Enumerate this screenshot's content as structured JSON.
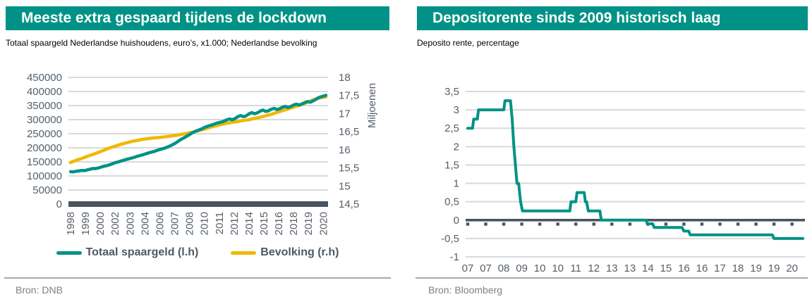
{
  "colors": {
    "accent_teal": "#009286",
    "accent_yellow": "#EFB800",
    "axis_bar": "#4a545e",
    "grid_line": "#d9d9d9",
    "tick_text": "#55606b",
    "legend_text": "#4d5a66",
    "title_text": "#ffffff",
    "source_text": "#808080"
  },
  "left_panel": {
    "title": "Meeste extra gespaard tijdens de lockdown",
    "subtitle": "Totaal spaargeld Nederlandse huishoudens, euro’s, x1.000; Nederlandse bevolking",
    "source": "Bron: DNB",
    "legend": [
      {
        "label": "Totaal spaargeld (l.h)",
        "color": "#009286"
      },
      {
        "label": "Bevolking (r.h)",
        "color": "#EFB800"
      }
    ]
  },
  "right_panel": {
    "title": "Depositorente sinds 2009 historisch laag",
    "subtitle": "Deposito rente, percentage",
    "source": "Bron: Bloomberg"
  },
  "chart_data": [
    {
      "type": "line",
      "title": "Meeste extra gespaard tijdens de lockdown",
      "subtitle": "Totaal spaargeld Nederlandse huishoudens, euro's, x1.000; Nederlandse bevolking",
      "source": "Bron: DNB",
      "grid": true,
      "legend_position": "bottom",
      "x_range": [
        1998,
        2020.9
      ],
      "left_axis": {
        "min": 0,
        "max": 450000,
        "step": 50000,
        "labels": [
          "450000",
          "400000",
          "350000",
          "300000",
          "250000",
          "200000",
          "150000",
          "100000",
          "50000",
          "0"
        ]
      },
      "right_axis": {
        "min": 14.5,
        "max": 18,
        "step": 0.5,
        "title": "Miljoenen",
        "labels": [
          "18",
          "17,5",
          "17",
          "16,5",
          "16",
          "15,5",
          "15",
          "14,5"
        ]
      },
      "x_ticks": {
        "labels": [
          "1998",
          "1999",
          "2000",
          "2002",
          "2003",
          "2004",
          "2006",
          "2007",
          "2008",
          "2010",
          "2011",
          "2012",
          "2014",
          "2015",
          "2016",
          "2018",
          "2019",
          "2020"
        ],
        "year_offsets": [
          0,
          1.333,
          2.667,
          4,
          5.333,
          6.667,
          8,
          9.333,
          10.667,
          12,
          13.333,
          14.667,
          16,
          17.333,
          18.667,
          20,
          21.333,
          22.667
        ]
      },
      "series": [
        {
          "name": "Bevolking (r.h)",
          "axis": "right",
          "color": "#EFB800",
          "points": [
            [
              1998.0,
              15.65
            ],
            [
              1998.5,
              15.71
            ],
            [
              1999.0,
              15.76
            ],
            [
              1999.5,
              15.82
            ],
            [
              2000.0,
              15.87
            ],
            [
              2000.5,
              15.93
            ],
            [
              2001.0,
              15.99
            ],
            [
              2001.5,
              16.05
            ],
            [
              2002.0,
              16.1
            ],
            [
              2002.5,
              16.15
            ],
            [
              2003.0,
              16.19
            ],
            [
              2003.5,
              16.23
            ],
            [
              2004.0,
              16.26
            ],
            [
              2004.5,
              16.29
            ],
            [
              2005.0,
              16.31
            ],
            [
              2005.5,
              16.33
            ],
            [
              2006.0,
              16.34
            ],
            [
              2006.5,
              16.36
            ],
            [
              2007.0,
              16.38
            ],
            [
              2007.5,
              16.4
            ],
            [
              2008.0,
              16.43
            ],
            [
              2008.5,
              16.46
            ],
            [
              2009.0,
              16.49
            ],
            [
              2009.5,
              16.53
            ],
            [
              2010.0,
              16.57
            ],
            [
              2010.5,
              16.62
            ],
            [
              2011.0,
              16.66
            ],
            [
              2011.5,
              16.7
            ],
            [
              2012.0,
              16.73
            ],
            [
              2012.5,
              16.76
            ],
            [
              2013.0,
              16.78
            ],
            [
              2013.5,
              16.81
            ],
            [
              2014.0,
              16.83
            ],
            [
              2014.5,
              16.87
            ],
            [
              2015.0,
              16.9
            ],
            [
              2015.5,
              16.94
            ],
            [
              2016.0,
              16.98
            ],
            [
              2016.5,
              17.03
            ],
            [
              2017.0,
              17.08
            ],
            [
              2017.5,
              17.13
            ],
            [
              2018.0,
              17.18
            ],
            [
              2018.5,
              17.23
            ],
            [
              2019.0,
              17.28
            ],
            [
              2019.5,
              17.35
            ],
            [
              2020.0,
              17.41
            ],
            [
              2020.5,
              17.44
            ],
            [
              2020.9,
              17.46
            ]
          ]
        },
        {
          "name": "Totaal spaargeld (l.h)",
          "axis": "left",
          "color": "#009286",
          "points": [
            [
              1998.0,
              115000
            ],
            [
              1998.25,
              114500
            ],
            [
              1998.5,
              116500
            ],
            [
              1998.75,
              118000
            ],
            [
              1999.0,
              119500
            ],
            [
              1999.25,
              119000
            ],
            [
              1999.5,
              121500
            ],
            [
              1999.75,
              124000
            ],
            [
              2000.0,
              126500
            ],
            [
              2000.25,
              126000
            ],
            [
              2000.5,
              128500
            ],
            [
              2000.75,
              131500
            ],
            [
              2001.0,
              134500
            ],
            [
              2001.25,
              136500
            ],
            [
              2001.5,
              139500
            ],
            [
              2001.75,
              143000
            ],
            [
              2002.0,
              147000
            ],
            [
              2002.25,
              149500
            ],
            [
              2002.5,
              152500
            ],
            [
              2002.75,
              155500
            ],
            [
              2003.0,
              158500
            ],
            [
              2003.25,
              161000
            ],
            [
              2003.5,
              163500
            ],
            [
              2003.75,
              166500
            ],
            [
              2004.0,
              170000
            ],
            [
              2004.25,
              172500
            ],
            [
              2004.5,
              175500
            ],
            [
              2004.75,
              178500
            ],
            [
              2005.0,
              182000
            ],
            [
              2005.25,
              184500
            ],
            [
              2005.5,
              187000
            ],
            [
              2005.75,
              190500
            ],
            [
              2006.0,
              194000
            ],
            [
              2006.25,
              196500
            ],
            [
              2006.5,
              199500
            ],
            [
              2006.75,
              203500
            ],
            [
              2007.0,
              208000
            ],
            [
              2007.25,
              213000
            ],
            [
              2007.5,
              219000
            ],
            [
              2007.75,
              226000
            ],
            [
              2008.0,
              232000
            ],
            [
              2008.25,
              237000
            ],
            [
              2008.5,
              243000
            ],
            [
              2008.75,
              249000
            ],
            [
              2009.0,
              255000
            ],
            [
              2009.25,
              259500
            ],
            [
              2009.5,
              263000
            ],
            [
              2009.75,
              267000
            ],
            [
              2010.0,
              272000
            ],
            [
              2010.25,
              276000
            ],
            [
              2010.5,
              279000
            ],
            [
              2010.75,
              282000
            ],
            [
              2011.0,
              286000
            ],
            [
              2011.25,
              289000
            ],
            [
              2011.5,
              291000
            ],
            [
              2011.75,
              294500
            ],
            [
              2012.0,
              299000
            ],
            [
              2012.25,
              302500
            ],
            [
              2012.5,
              299500
            ],
            [
              2012.75,
              304000
            ],
            [
              2013.0,
              310500
            ],
            [
              2013.25,
              314500
            ],
            [
              2013.5,
              310500
            ],
            [
              2013.75,
              313500
            ],
            [
              2014.0,
              320500
            ],
            [
              2014.25,
              325000
            ],
            [
              2014.5,
              321000
            ],
            [
              2014.75,
              324000
            ],
            [
              2015.0,
              330000
            ],
            [
              2015.25,
              334000
            ],
            [
              2015.5,
              329000
            ],
            [
              2015.75,
              331500
            ],
            [
              2016.0,
              337000
            ],
            [
              2016.25,
              340000
            ],
            [
              2016.5,
              336000
            ],
            [
              2016.75,
              338500
            ],
            [
              2017.0,
              344000
            ],
            [
              2017.25,
              347000
            ],
            [
              2017.5,
              343500
            ],
            [
              2017.75,
              346500
            ],
            [
              2018.0,
              352000
            ],
            [
              2018.25,
              355000
            ],
            [
              2018.5,
              352000
            ],
            [
              2018.75,
              355500
            ],
            [
              2019.0,
              361000
            ],
            [
              2019.25,
              364000
            ],
            [
              2019.5,
              362000
            ],
            [
              2019.75,
              366500
            ],
            [
              2020.0,
              372000
            ],
            [
              2020.25,
              378500
            ],
            [
              2020.5,
              381500
            ],
            [
              2020.75,
              384500
            ],
            [
              2020.9,
              386500
            ]
          ]
        }
      ]
    },
    {
      "type": "line",
      "title": "Depositorente sinds 2009 historisch laag",
      "subtitle": "Deposito rente, percentage",
      "source": "Bron: Bloomberg",
      "grid": true,
      "legend_position": "none",
      "x_range": [
        2007,
        2020.95
      ],
      "y_axis": {
        "min": -1,
        "max": 3.5,
        "step": 0.5,
        "labels": [
          "3,5",
          "3",
          "2,5",
          "2",
          "1,5",
          "1",
          "0,5",
          "0",
          "-0,5",
          "-1"
        ]
      },
      "x_ticks": {
        "labels": [
          "07",
          "07",
          "08",
          "09",
          "10",
          "10",
          "11",
          "12",
          "13",
          "13",
          "14",
          "15",
          "16",
          "16",
          "17",
          "18",
          "19",
          "19",
          "20"
        ],
        "year_offsets": [
          0,
          0.75,
          1.5,
          2.25,
          3,
          3.75,
          4.5,
          5.25,
          6,
          6.75,
          7.5,
          8.25,
          9,
          9.75,
          10.5,
          11.25,
          12,
          12.75,
          13.5
        ]
      },
      "series": [
        {
          "name": "Deposito rente",
          "axis": "left",
          "color": "#009286",
          "points": [
            [
              2007.0,
              2.5
            ],
            [
              2007.2,
              2.5
            ],
            [
              2007.25,
              2.75
            ],
            [
              2007.4,
              2.75
            ],
            [
              2007.45,
              3.0
            ],
            [
              2008.5,
              3.0
            ],
            [
              2008.55,
              3.25
            ],
            [
              2008.78,
              3.25
            ],
            [
              2008.85,
              2.75
            ],
            [
              2008.92,
              2.0
            ],
            [
              2009.05,
              1.0
            ],
            [
              2009.12,
              1.0
            ],
            [
              2009.2,
              0.5
            ],
            [
              2009.28,
              0.25
            ],
            [
              2011.25,
              0.25
            ],
            [
              2011.3,
              0.5
            ],
            [
              2011.5,
              0.5
            ],
            [
              2011.55,
              0.75
            ],
            [
              2011.85,
              0.75
            ],
            [
              2011.9,
              0.5
            ],
            [
              2011.95,
              0.5
            ],
            [
              2012.02,
              0.25
            ],
            [
              2012.5,
              0.25
            ],
            [
              2012.56,
              0.0
            ],
            [
              2014.42,
              0.0
            ],
            [
              2014.48,
              -0.1
            ],
            [
              2014.7,
              -0.1
            ],
            [
              2014.76,
              -0.2
            ],
            [
              2015.92,
              -0.2
            ],
            [
              2016.0,
              -0.3
            ],
            [
              2016.2,
              -0.3
            ],
            [
              2016.26,
              -0.4
            ],
            [
              2019.68,
              -0.4
            ],
            [
              2019.75,
              -0.5
            ],
            [
              2020.95,
              -0.5
            ]
          ]
        }
      ]
    }
  ]
}
